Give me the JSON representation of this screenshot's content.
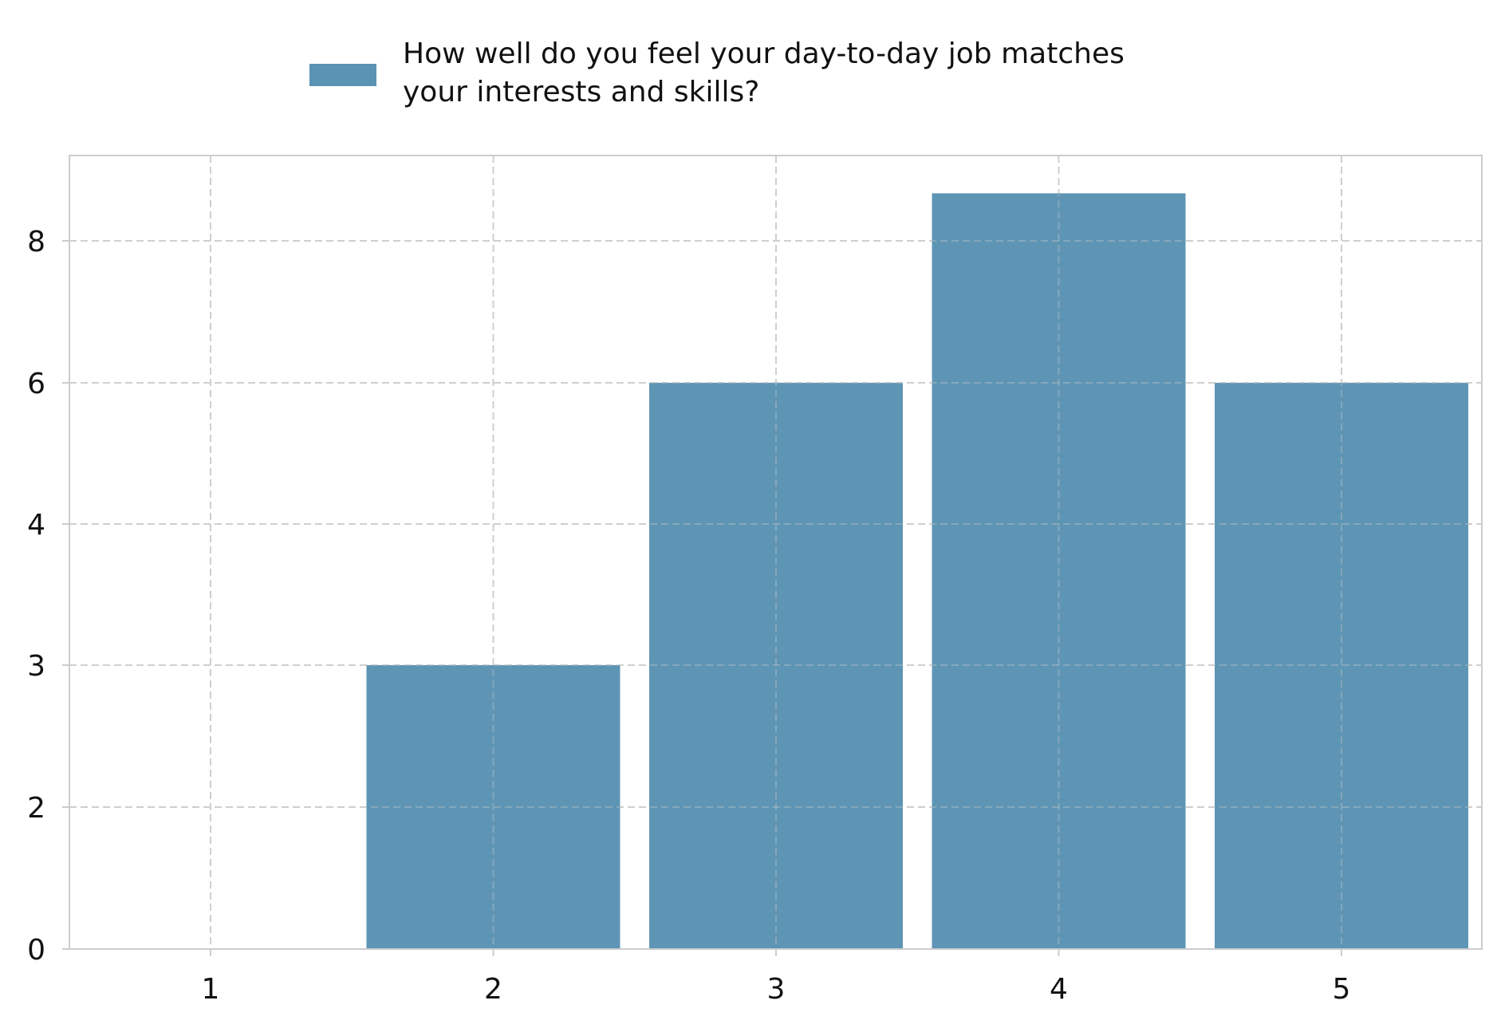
{
  "chart_data": {
    "type": "bar",
    "categories": [
      "1",
      "2",
      "3",
      "4",
      "5"
    ],
    "series": [
      {
        "name": "How well do you feel your day-to-day job matches your interests and skills?",
        "legend_lines": [
          "How well do you feel your day-to-day job matches",
          "your interests and skills?"
        ],
        "values": [
          0,
          3,
          6,
          8.67,
          6
        ],
        "color": "#5b93b3"
      }
    ],
    "y_axis": {
      "ticks": [
        0,
        2,
        3,
        4,
        6,
        8
      ],
      "tick_labels": [
        "0",
        "2",
        "3",
        "4",
        "6",
        "8"
      ],
      "scale": "piecewise (ticks equally spaced)"
    },
    "title": "",
    "xlabel": "",
    "ylabel": "",
    "grid": true,
    "legend": "top-center"
  }
}
